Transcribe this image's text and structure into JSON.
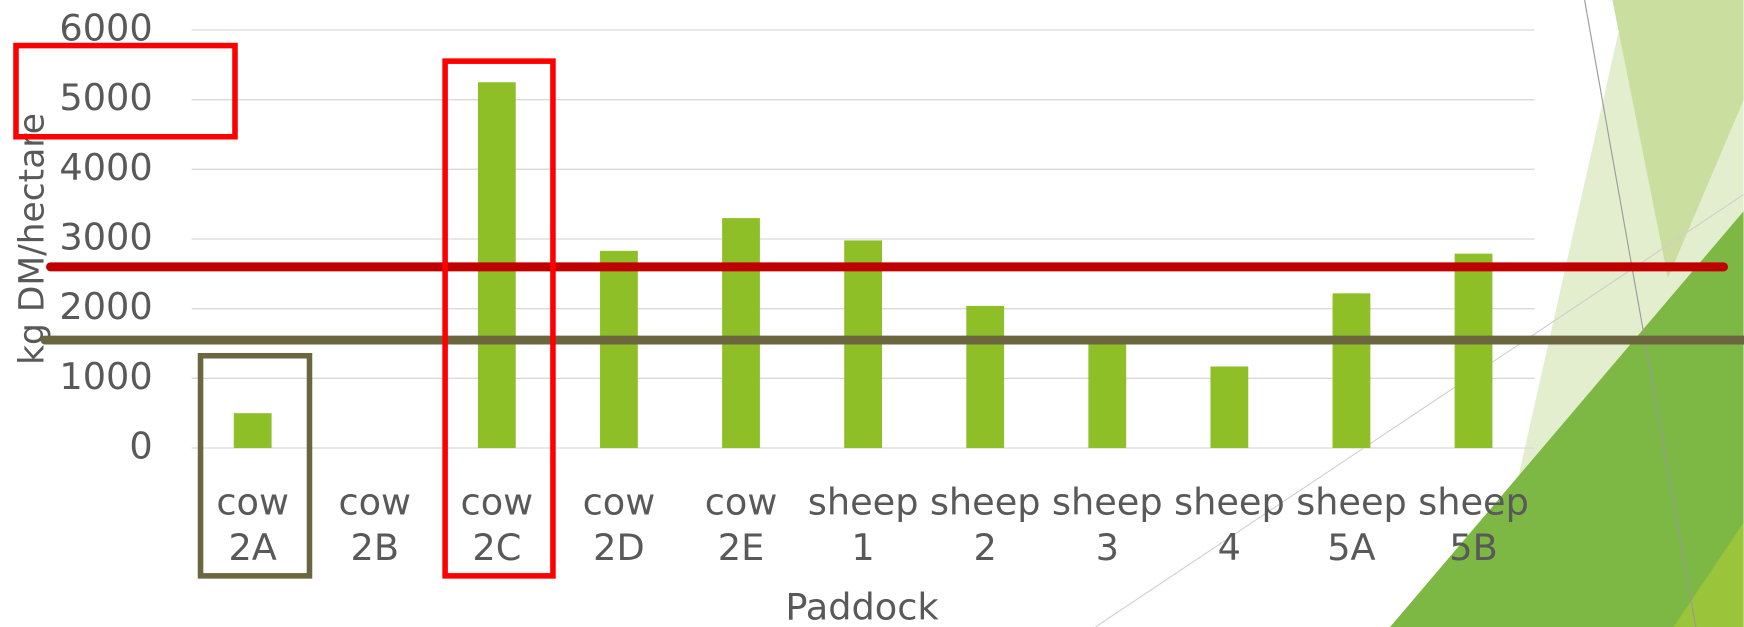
{
  "chart_data": {
    "type": "bar",
    "x_label": "Paddock",
    "y_label": "kg DM/hectare",
    "categories": [
      "cow 2A",
      "cow 2B",
      "cow 2C",
      "cow 2D",
      "cow 2E",
      "sheep 1",
      "sheep 2",
      "sheep 3",
      "sheep 4",
      "sheep 5A",
      "sheep 5B"
    ],
    "values": [
      500,
      0,
      5250,
      2830,
      3300,
      2980,
      2040,
      1560,
      1170,
      2220,
      2790
    ],
    "color": "#8fbf26",
    "ylim": [
      0,
      6000
    ],
    "yticks": [
      0,
      1000,
      2000,
      3000,
      4000,
      5000,
      6000
    ],
    "grid": true,
    "reference_lines": [
      {
        "value": 2600,
        "color": "#c00000"
      },
      {
        "value": 1550,
        "color": "#6b6540"
      }
    ]
  }
}
